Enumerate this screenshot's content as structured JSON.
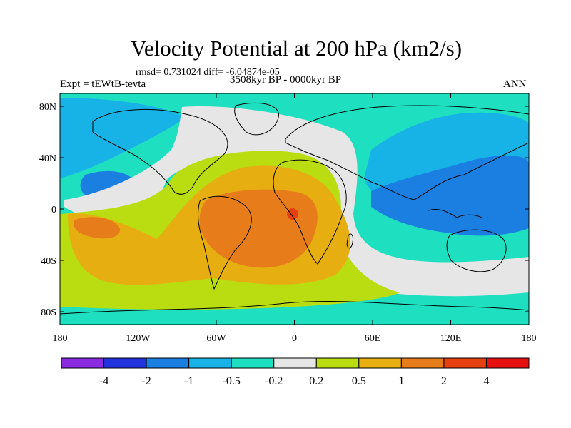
{
  "chart_data": {
    "type": "contour_map",
    "title": "Velocity Potential at 200 hPa (km2/s)",
    "stats": "rmsd= 0.731024 diff= -6.04874e-05",
    "experiment": "Expt = tEWtB-tevta",
    "period": "3508kyr BP - 0000kyr BP",
    "season": "ANN",
    "x_ticks": [
      "180",
      "120W",
      "60W",
      "0",
      "60E",
      "120E",
      "180"
    ],
    "x_range_deg": [
      -180,
      180
    ],
    "y_ticks": [
      "80N",
      "40N",
      "0",
      "40S",
      "80S"
    ],
    "y_range_deg": [
      -90,
      90
    ],
    "colorbar": {
      "labels": [
        "-4",
        "-2",
        "-1",
        "-0.5",
        "-0.2",
        "0.2",
        "0.5",
        "1",
        "2",
        "4"
      ],
      "colors": [
        "#8a2be2",
        "#2233dd",
        "#1a7fe0",
        "#17b3e6",
        "#1ee0c0",
        "#e6e6e6",
        "#b9dd10",
        "#e6ae10",
        "#e67d1a",
        "#e64010",
        "#e61010"
      ]
    }
  }
}
